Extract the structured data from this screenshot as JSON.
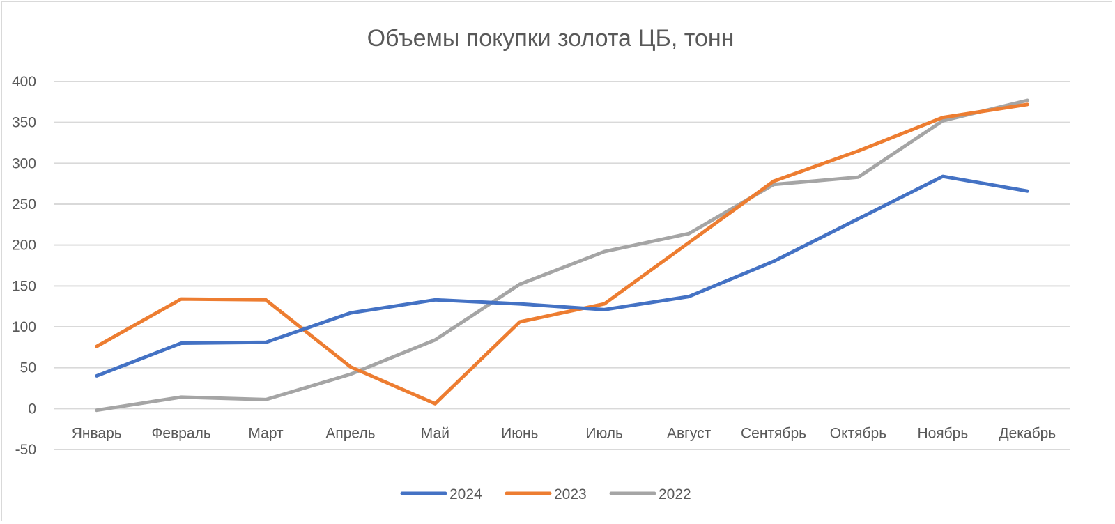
{
  "chart_data": {
    "type": "line",
    "title": "Объемы покупки золота ЦБ, тонн",
    "xlabel": "",
    "ylabel": "",
    "categories": [
      "Январь",
      "Февраль",
      "Март",
      "Апрель",
      "Май",
      "Июнь",
      "Июль",
      "Август",
      "Сентябрь",
      "Октябрь",
      "Ноябрь",
      "Декабрь"
    ],
    "ylim": [
      -50,
      400
    ],
    "yticks": [
      -50,
      0,
      50,
      100,
      150,
      200,
      250,
      300,
      350,
      400
    ],
    "grid": true,
    "legend_position": "bottom",
    "series": [
      {
        "name": "2024",
        "color": "#4472C4",
        "values": [
          40,
          80,
          81,
          117,
          133,
          128,
          121,
          137,
          180,
          232,
          284,
          266
        ]
      },
      {
        "name": "2023",
        "color": "#ED7D31",
        "values": [
          76,
          134,
          133,
          51,
          6,
          106,
          128,
          203,
          278,
          315,
          356,
          372
        ]
      },
      {
        "name": "2022",
        "color": "#A5A5A5",
        "values": [
          -2,
          14,
          11,
          42,
          84,
          152,
          192,
          214,
          274,
          283,
          352,
          377
        ]
      }
    ]
  }
}
